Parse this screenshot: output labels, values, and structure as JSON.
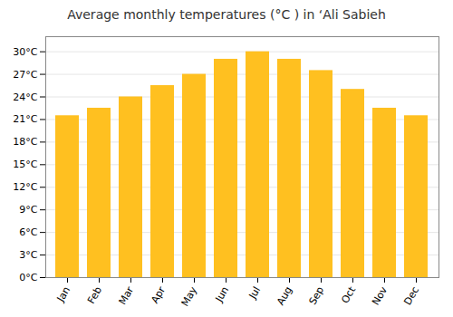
{
  "chart_data": {
    "type": "bar",
    "title": "Average monthly temperatures (°C ) in ‘Ali Sabieh",
    "categories": [
      "Jan",
      "Feb",
      "Mar",
      "Apr",
      "May",
      "Jun",
      "Jul",
      "Aug",
      "Sep",
      "Oct",
      "Nov",
      "Dec"
    ],
    "values": [
      21.5,
      22.5,
      24.0,
      25.5,
      27.0,
      29.0,
      30.0,
      29.0,
      27.5,
      25.0,
      22.5,
      21.5
    ],
    "color": "#FFC020",
    "ylim": [
      0,
      32
    ],
    "yticks": [
      {
        "value": 0,
        "label": "0°C"
      },
      {
        "value": 3,
        "label": "3°C"
      },
      {
        "value": 6,
        "label": "6°C"
      },
      {
        "value": 9,
        "label": "9°C"
      },
      {
        "value": 12,
        "label": "12°C"
      },
      {
        "value": 15,
        "label": "15°C"
      },
      {
        "value": 18,
        "label": "18°C"
      },
      {
        "value": 21,
        "label": "21°C"
      },
      {
        "value": 24,
        "label": "24°C"
      },
      {
        "value": 27,
        "label": "27°C"
      },
      {
        "value": 30,
        "label": "30°C"
      }
    ],
    "grid": true
  }
}
